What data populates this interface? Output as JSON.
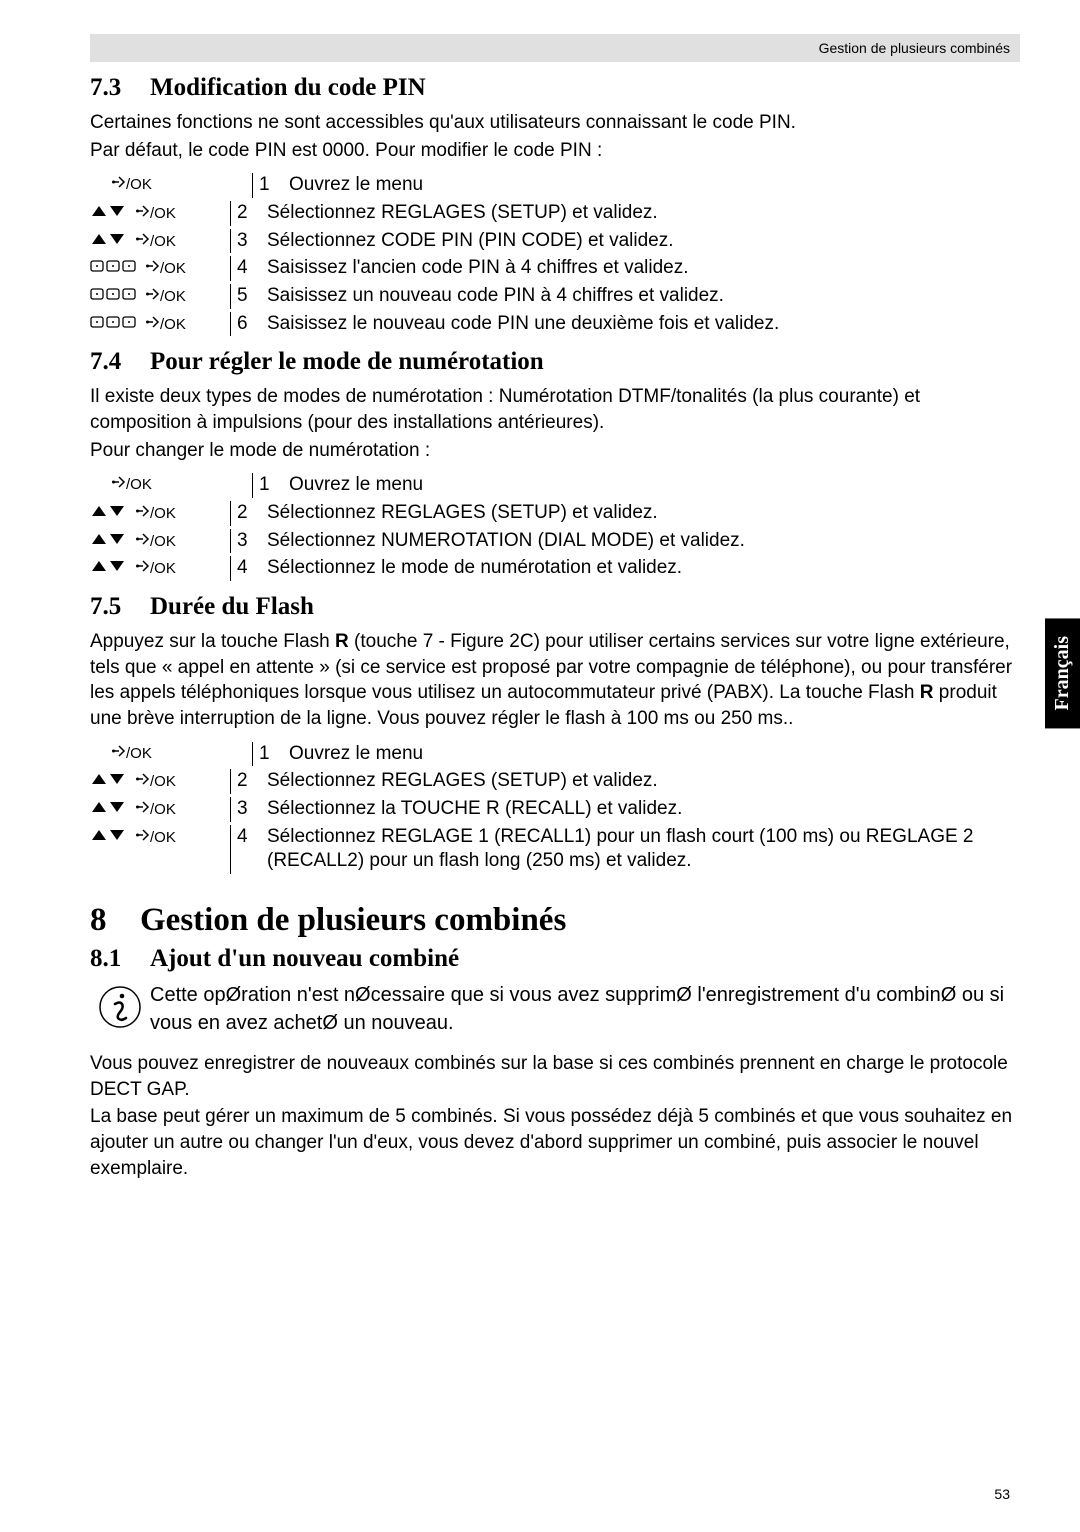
{
  "header": {
    "right_text": "Gestion de plusieurs combinés"
  },
  "lang_tab": "Français",
  "page_number": "53",
  "section73": {
    "num": "7.3",
    "title": "Modification du code PIN",
    "intro1": "Certaines fonctions ne sont accessibles qu'aux utilisateurs connaissant le code PIN.",
    "intro2": "Par défaut, le code PIN est 0000. Pour modifier le code PIN :",
    "steps": [
      {
        "icons": [
          "ok"
        ],
        "n": "1",
        "t": "Ouvrez le menu"
      },
      {
        "icons": [
          "updown",
          "ok"
        ],
        "n": "2",
        "t": "Sélectionnez REGLAGES (SETUP) et validez."
      },
      {
        "icons": [
          "updown",
          "ok"
        ],
        "n": "3",
        "t": "Sélectionnez CODE PIN (PIN CODE) et validez."
      },
      {
        "icons": [
          "keypad",
          "ok"
        ],
        "n": "4",
        "t": "Saisissez l'ancien code PIN à 4 chiffres et validez."
      },
      {
        "icons": [
          "keypad",
          "ok"
        ],
        "n": "5",
        "t": "Saisissez un nouveau code PIN à 4 chiffres et validez."
      },
      {
        "icons": [
          "keypad",
          "ok"
        ],
        "n": "6",
        "t": "Saisissez le nouveau code PIN une deuxième fois et validez."
      }
    ]
  },
  "section74": {
    "num": "7.4",
    "title": "Pour régler le mode de numérotation",
    "intro1": "Il existe deux types de modes de numérotation : Numérotation DTMF/tonalités (la plus courante) et composition à impulsions (pour des installations antérieures).",
    "intro2": "Pour changer le mode de numérotation :",
    "steps": [
      {
        "icons": [
          "ok"
        ],
        "n": "1",
        "t": "Ouvrez le menu"
      },
      {
        "icons": [
          "updown",
          "ok"
        ],
        "n": "2",
        "t": "Sélectionnez REGLAGES (SETUP) et validez."
      },
      {
        "icons": [
          "updown",
          "ok"
        ],
        "n": "3",
        "t": "Sélectionnez NUMEROTATION (DIAL MODE) et validez."
      },
      {
        "icons": [
          "updown",
          "ok"
        ],
        "n": "4",
        "t": "Sélectionnez le mode de numérotation et validez."
      }
    ]
  },
  "section75": {
    "num": "7.5",
    "title": "Durée du Flash",
    "intro_parts": {
      "a": "Appuyez sur la touche Flash ",
      "b": "R",
      "c": " (touche 7 - Figure 2C) pour utiliser certains services sur votre ligne extérieure, tels que « appel en attente » (si ce service est proposé par votre compagnie de téléphone), ou pour transférer les appels téléphoniques lorsque vous utilisez un autocommutateur privé (PABX). La touche Flash ",
      "d": "R",
      "e": " produit une brève interruption de la ligne. Vous pouvez régler le flash à 100 ms ou 250 ms.."
    },
    "steps": [
      {
        "icons": [
          "ok"
        ],
        "n": "1",
        "t": "Ouvrez le menu"
      },
      {
        "icons": [
          "updown",
          "ok"
        ],
        "n": "2",
        "t": "Sélectionnez REGLAGES (SETUP) et validez."
      },
      {
        "icons": [
          "updown",
          "ok"
        ],
        "n": "3",
        "t": "Sélectionnez la TOUCHE R (RECALL) et validez."
      },
      {
        "icons": [
          "updown",
          "ok"
        ],
        "n": "4",
        "t": "Sélectionnez REGLAGE 1 (RECALL1) pour un flash court (100 ms) ou REGLAGE 2 (RECALL2) pour un flash long (250 ms) et validez."
      }
    ]
  },
  "section8": {
    "num": "8",
    "title": "Gestion de plusieurs combinés"
  },
  "section81": {
    "num": "8.1",
    "title": "Ajout d'un nouveau combiné",
    "note": "Cette opØration n'est nØcessaire que si vous avez supprimØ l'enregistrement d'u combinØ ou si vous en avez achetØ un nouveau.",
    "p1": "Vous pouvez enregistrer de nouveaux combinés sur la base si ces combinés prennent en charge le protocole DECT GAP.",
    "p2": "La base peut gérer un maximum de 5 combinés. Si vous possédez déjà 5 combinés et que vous souhaitez en ajouter un autre ou changer l'un d'eux, vous devez d'abord supprimer un combiné, puis associer le nouvel exemplaire."
  },
  "icon_labels": {
    "ok": "/OK"
  }
}
